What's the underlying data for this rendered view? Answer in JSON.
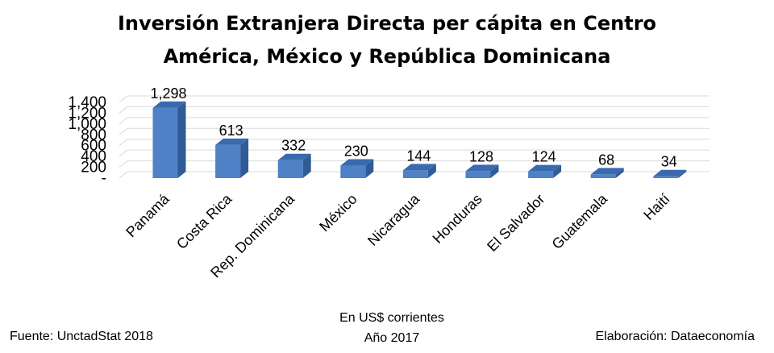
{
  "chart_data": {
    "type": "bar",
    "title_lines": [
      "Inversión Extranjera Directa per cápita en Centro",
      "América, México y República Dominicana"
    ],
    "categories": [
      "Panamá",
      "Costa Rica",
      "Rep. Dominicana",
      "México",
      "Nicaragua",
      "Honduras",
      "El Salvador",
      "Guatemala",
      "Haití"
    ],
    "values": [
      1298,
      613,
      332,
      230,
      144,
      128,
      124,
      68,
      34
    ],
    "value_labels": [
      "1,298",
      "613",
      "332",
      "230",
      "144",
      "128",
      "124",
      "68",
      "34"
    ],
    "y_ticks": [
      "-",
      "200",
      "400",
      "600",
      "800",
      "1,000",
      "1,200",
      "1,400"
    ],
    "ylim": [
      0,
      1400
    ],
    "grid": true,
    "bar_style": "3d",
    "colors": {
      "bar_front": "#4F81C7",
      "bar_side": "#2F5C97",
      "bar_top": "#3A6AAE",
      "grid": "#D9D9D9"
    },
    "notes": {
      "subtitle_line1": "En US$ corrientes",
      "subtitle_line2": "Año 2017",
      "source": "Fuente: UnctadStat 2018",
      "credit": "Elaboración: Dataeconomía"
    }
  }
}
